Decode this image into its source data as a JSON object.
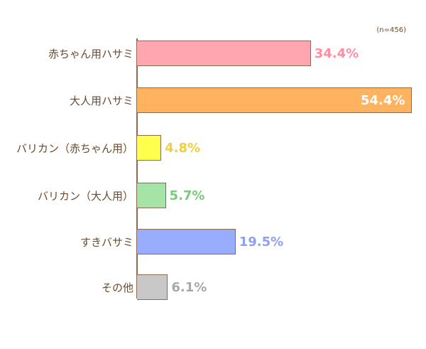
{
  "chart_data": {
    "type": "bar",
    "orientation": "horizontal",
    "title": "",
    "note": "(n=456)",
    "xlabel": "",
    "ylabel": "",
    "grid": false,
    "xlim": [
      0,
      55
    ],
    "categories": [
      "赤ちゃん用ハサミ",
      "大人用ハサミ",
      "バリカン（赤ちゃん用）",
      "バリカン（大人用）",
      "すきバサミ",
      "その他"
    ],
    "values": [
      34.4,
      54.4,
      4.8,
      5.7,
      19.5,
      6.1
    ],
    "value_labels": [
      "34.4%",
      "54.4%",
      "4.8%",
      "5.7%",
      "19.5%",
      "6.1%"
    ],
    "colors": [
      "#ffa6b0",
      "#ffb35f",
      "#ffff4d",
      "#a6e3a6",
      "#99adff",
      "#c8c8c8"
    ],
    "label_colors": [
      "#ff8fa0",
      "#ffffff",
      "#f2cf3a",
      "#7cc87c",
      "#8f9ff2",
      "#a8a8a8"
    ],
    "unit": "%"
  }
}
